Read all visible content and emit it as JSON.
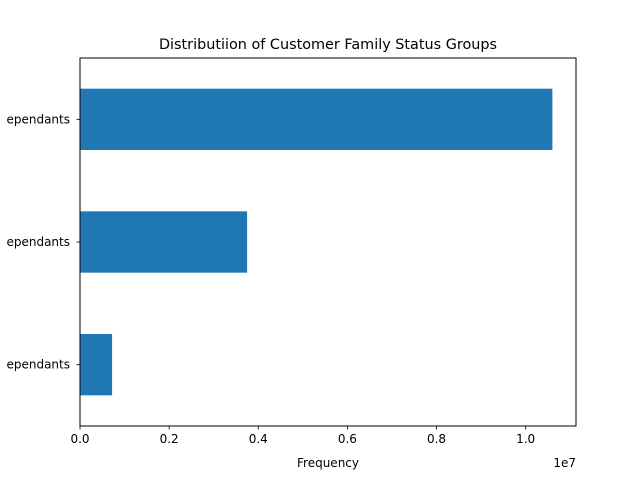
{
  "chart_data": {
    "type": "bar",
    "orientation": "horizontal",
    "title": "Distributiion of Customer Family Status Groups",
    "xlabel": "Frequency",
    "ylabel": "",
    "x_offset_label": "1e7",
    "categories": [
      "Low Dependants",
      "Moderate Dependants",
      "High Dependants"
    ],
    "categories_visible_text": [
      "ependants",
      "ependants",
      "ependants"
    ],
    "values": [
      720000,
      3750000,
      10600000
    ],
    "xlim": [
      0,
      11130000
    ],
    "xticks": [
      0,
      2000000,
      4000000,
      6000000,
      8000000,
      10000000
    ],
    "xtick_labels": [
      "0.0",
      "0.2",
      "0.4",
      "0.6",
      "0.8",
      "1.0"
    ],
    "bar_color": "#1f77b4",
    "grid": false,
    "legend": "none"
  }
}
